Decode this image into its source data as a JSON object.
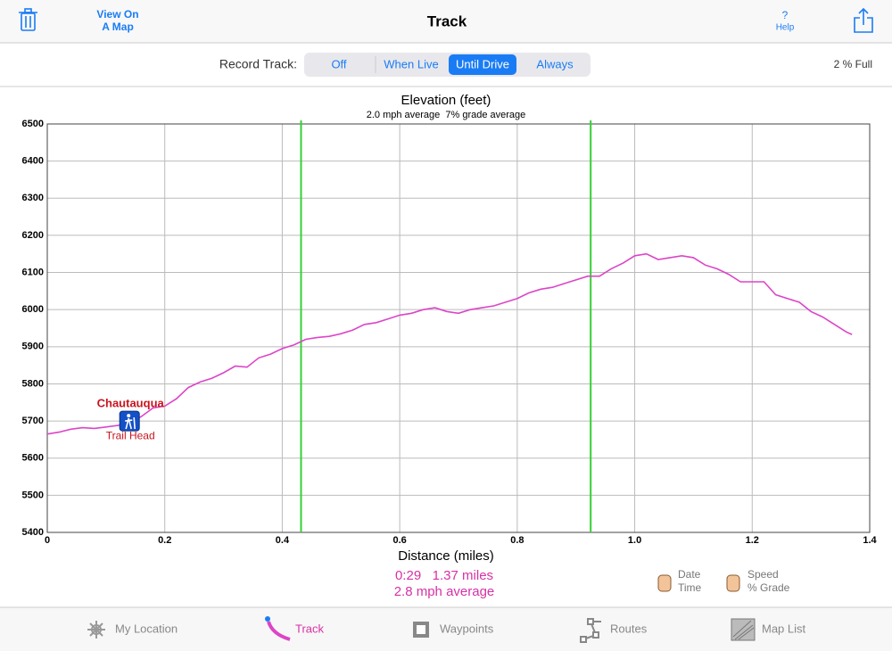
{
  "header": {
    "map_button": [
      "View On",
      "A Map"
    ],
    "title": "Track",
    "help_icon": "?",
    "help": "Help"
  },
  "record_bar": {
    "label": "Record Track:",
    "options": [
      "Off",
      "When Live",
      "Until Drive",
      "Always"
    ],
    "selected_index": 2,
    "storage": "2 % Full"
  },
  "chart_data": {
    "type": "line",
    "title": "Elevation (feet)",
    "subtitle": "2.0 mph average  7% grade average",
    "x_label": "Distance (miles)",
    "x": [
      0,
      0.02,
      0.04,
      0.06,
      0.08,
      0.1,
      0.12,
      0.14,
      0.16,
      0.18,
      0.2,
      0.22,
      0.24,
      0.26,
      0.28,
      0.3,
      0.32,
      0.34,
      0.36,
      0.38,
      0.4,
      0.42,
      0.44,
      0.46,
      0.48,
      0.5,
      0.52,
      0.54,
      0.56,
      0.58,
      0.6,
      0.62,
      0.64,
      0.66,
      0.68,
      0.7,
      0.72,
      0.74,
      0.76,
      0.78,
      0.8,
      0.82,
      0.84,
      0.86,
      0.88,
      0.9,
      0.92,
      0.94,
      0.96,
      0.98,
      1.0,
      1.02,
      1.04,
      1.06,
      1.08,
      1.1,
      1.12,
      1.14,
      1.16,
      1.18,
      1.2,
      1.22,
      1.24,
      1.26,
      1.28,
      1.3,
      1.32,
      1.34,
      1.36,
      1.37
    ],
    "values": [
      5665,
      5670,
      5678,
      5682,
      5680,
      5684,
      5688,
      5695,
      5712,
      5735,
      5740,
      5760,
      5790,
      5805,
      5815,
      5830,
      5848,
      5845,
      5870,
      5880,
      5895,
      5905,
      5920,
      5925,
      5928,
      5935,
      5945,
      5960,
      5965,
      5975,
      5985,
      5990,
      6000,
      6005,
      5995,
      5990,
      6000,
      6005,
      6010,
      6020,
      6030,
      6045,
      6055,
      6060,
      6070,
      6080,
      6090,
      6090,
      6110,
      6125,
      6145,
      6150,
      6135,
      6140,
      6145,
      6140,
      6120,
      6110,
      6095,
      6075,
      6075,
      6075,
      6040,
      6030,
      6020,
      5995,
      5980,
      5960,
      5940,
      5933
    ],
    "color": "#dc45c8",
    "xlim": [
      0,
      1.4
    ],
    "xticks": [
      0,
      0.2,
      0.4,
      0.6,
      0.8,
      {
        "value": 1,
        "label": "1.0"
      },
      1.2,
      1.4
    ],
    "ylim": [
      5400,
      6500
    ],
    "yticks": [
      5400,
      5500,
      5600,
      5700,
      5800,
      5900,
      6000,
      6100,
      6200,
      6300,
      6400,
      6500
    ],
    "grid": true,
    "vlines": {
      "values": [
        0.432,
        0.925
      ],
      "color": "#35d035"
    },
    "annotation": {
      "title": "Chautauqua",
      "label": "Trail Head",
      "x": 0.14,
      "y": 5700
    }
  },
  "stats": [
    "0:29   1.37 miles",
    "2.8 mph average"
  ],
  "axis_buttons": [
    [
      "Date",
      "Time"
    ],
    [
      "Speed",
      "% Grade"
    ]
  ],
  "tabs": {
    "items": [
      "My Location",
      "Track",
      "Waypoints",
      "Routes",
      "Map List"
    ],
    "active_index": 1
  }
}
